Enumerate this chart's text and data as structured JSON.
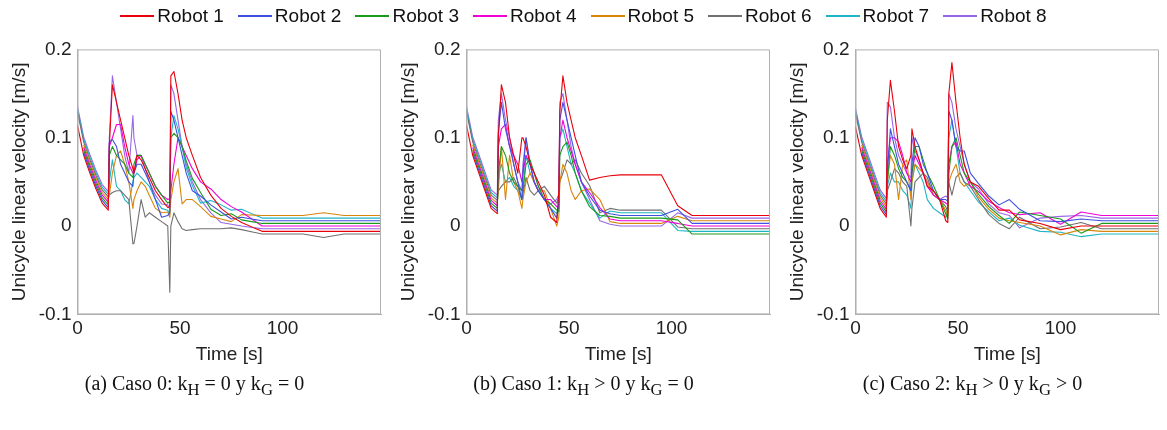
{
  "chart_data": [
    {
      "type": "line",
      "title": "(a) Caso 0: k$_{H}$ = 0 y k$_{G}$ = 0",
      "xlabel": "Time [s]",
      "ylabel": "Unicycle linear velocity [m/s]",
      "xlim": [
        0,
        148
      ],
      "xticks": [
        0,
        50,
        100
      ],
      "ylim": [
        -0.1,
        0.2
      ],
      "yticks": [
        -0.1,
        0,
        0.1,
        0.2
      ],
      "grid": false,
      "legend": "top",
      "x": [
        0,
        3,
        6,
        9,
        12,
        15,
        15.5,
        17,
        19,
        21,
        23,
        25,
        27,
        27.5,
        29,
        31,
        33,
        35,
        38,
        41,
        44,
        45,
        45.5,
        47,
        49,
        51,
        53,
        56,
        60,
        65,
        70,
        75,
        80,
        90,
        100,
        110,
        120,
        130,
        140,
        148
      ],
      "series": [
        {
          "name": "Robot 1",
          "color": "#e8000b",
          "values": [
            0.114,
            0.08,
            0.06,
            0.042,
            0.026,
            0.018,
            0.09,
            0.16,
            0.14,
            0.12,
            0.1,
            0.08,
            0.065,
            0.06,
            0.08,
            0.075,
            0.065,
            0.055,
            0.04,
            0.03,
            0.021,
            0.022,
            0.17,
            0.175,
            0.15,
            0.12,
            0.1,
            0.08,
            0.055,
            0.035,
            0.02,
            0.011,
            0.004,
            -0.006,
            -0.006,
            -0.006,
            -0.006,
            -0.006,
            -0.006,
            -0.006
          ]
        },
        {
          "name": "Robot 2",
          "color": "#3d50e0",
          "values": [
            null,
            0.083,
            0.063,
            0.045,
            0.029,
            0.021,
            0.095,
            0.098,
            0.09,
            0.07,
            0.06,
            0.05,
            0.045,
            0.06,
            0.07,
            0.07,
            0.06,
            0.05,
            0.03,
            0.01,
            0.012,
            0.016,
            0.13,
            0.12,
            0.1,
            0.08,
            0.06,
            0.04,
            0.034,
            0.024,
            0.016,
            0.008,
            0.01,
            0.006,
            0.006,
            0.006,
            0.006,
            0.006,
            0.006,
            0.006
          ]
        },
        {
          "name": "Robot 3",
          "color": "#1a9a1a",
          "values": [
            null,
            0.086,
            0.066,
            0.048,
            0.032,
            0.024,
            0.08,
            0.09,
            0.08,
            0.075,
            0.07,
            0.06,
            0.055,
            0.07,
            0.08,
            0.08,
            0.07,
            0.06,
            0.045,
            0.035,
            0.026,
            0.028,
            0.1,
            0.105,
            0.1,
            0.09,
            0.074,
            0.054,
            0.038,
            0.019,
            0.012,
            0.014,
            0.007,
            0.003,
            0.003,
            0.003,
            0.003,
            0.003,
            0.003,
            0.003
          ]
        },
        {
          "name": "Robot 4",
          "color": "#f000d8",
          "values": [
            null,
            0.089,
            0.069,
            0.051,
            0.035,
            0.027,
            0.09,
            0.1,
            0.115,
            0.115,
            0.09,
            0.07,
            0.06,
            0.06,
            0.075,
            0.08,
            0.07,
            0.06,
            0.045,
            0.035,
            0.03,
            0.031,
            0.04,
            0.07,
            0.1,
            0.09,
            0.08,
            0.065,
            0.05,
            0.042,
            0.03,
            0.022,
            0.016,
            0,
            0,
            0,
            0,
            0,
            0,
            0
          ]
        },
        {
          "name": "Robot 5",
          "color": "#d9860b",
          "values": [
            null,
            0.092,
            0.072,
            0.054,
            0.038,
            0.03,
            0.035,
            0.06,
            0.08,
            0.085,
            0.07,
            0.05,
            0.02,
            0.03,
            0.04,
            0.05,
            0.045,
            0.035,
            0.02,
            0.015,
            0.016,
            0.01,
            0.03,
            0.05,
            0.065,
            0.025,
            0.03,
            0.03,
            0.022,
            0.011,
            0.008,
            0.005,
            0.013,
            0.012,
            0.012,
            0.012,
            0.015,
            0.012,
            0.012,
            0.012
          ]
        },
        {
          "name": "Robot 6",
          "color": "#707070",
          "values": [
            0.129,
            0.095,
            0.075,
            0.057,
            0.041,
            0.033,
            0.035,
            0.038,
            0.04,
            0.04,
            0.035,
            0.03,
            -0.02,
            -0.02,
            0,
            0.03,
            0.01,
            0.015,
            0.01,
            0.005,
            0,
            -0.075,
            0,
            0.015,
            0.005,
            -0.003,
            -0.005,
            -0.004,
            -0.003,
            -0.003,
            -0.003,
            -0.002,
            -0.004,
            -0.009,
            -0.009,
            -0.009,
            -0.013,
            -0.009,
            -0.009,
            -0.009
          ]
        },
        {
          "name": "Robot 7",
          "color": "#1fb5c4",
          "values": [
            0.132,
            0.098,
            0.078,
            0.06,
            0.044,
            0.036,
            0.05,
            0.075,
            0.045,
            0.04,
            0.03,
            0.025,
            0.05,
            0.055,
            0.06,
            0.055,
            0.05,
            0.045,
            0.03,
            0.02,
            0.018,
            0.013,
            0.1,
            0.125,
            0.11,
            0.09,
            0.066,
            0.046,
            0.026,
            0.029,
            0.024,
            0.018,
            0.019,
            0.009,
            0.009,
            0.009,
            0.009,
            0.009,
            0.009,
            0.009
          ]
        },
        {
          "name": "Robot 8",
          "color": "#9966e6",
          "values": [
            0.135,
            0.101,
            0.081,
            0.063,
            0.047,
            0.039,
            0.1,
            0.17,
            0.14,
            0.11,
            0.08,
            0.06,
            0.125,
            0.1,
            0.08,
            0.08,
            0.065,
            0.05,
            0.035,
            0.025,
            0.024,
            0.019,
            0.16,
            0.15,
            0.12,
            0.09,
            0.07,
            0.05,
            0.03,
            0.015,
            0.004,
            0.002,
            0,
            -0.003,
            -0.003,
            -0.003,
            -0.003,
            -0.003,
            -0.003,
            -0.003
          ]
        }
      ]
    },
    {
      "type": "line",
      "title": "(b) Caso 1: k$_{H}$ > 0 y k$_{G}$ = 0",
      "xlabel": "Time [s]",
      "ylabel": "Unicycle linear velocity [m/s]",
      "xlim": [
        0,
        148
      ],
      "xticks": [
        0,
        50,
        100
      ],
      "ylim": [
        -0.1,
        0.2
      ],
      "yticks": [
        -0.1,
        0,
        0.1,
        0.2
      ],
      "grid": false,
      "x": [
        0,
        3,
        6,
        9,
        12,
        15,
        15.5,
        17,
        19,
        21,
        23,
        25,
        27,
        27.5,
        29,
        31,
        33,
        35,
        38,
        41,
        44,
        45,
        45.5,
        47,
        49,
        51,
        53,
        56,
        60,
        65,
        70,
        75,
        80,
        95,
        103,
        110,
        120,
        130,
        140,
        148
      ],
      "series": [
        {
          "color": "#e8000b",
          "values": [
            0.114,
            0.08,
            0.06,
            0.04,
            0.02,
            0.014,
            0.1,
            0.16,
            0.14,
            0.1,
            0.08,
            0.06,
            0.1,
            0.1,
            0.09,
            0.07,
            0.06,
            0.05,
            0.035,
            0.01,
            0.004,
            0.04,
            0.13,
            0.17,
            0.14,
            0.12,
            0.1,
            0.08,
            0.052,
            0.055,
            0.057,
            0.058,
            0.058,
            0.058,
            0.023,
            0.012,
            0.012,
            0.012,
            0.012,
            0.012
          ]
        },
        {
          "color": "#3d50e0",
          "values": [
            null,
            0.083,
            0.063,
            0.043,
            0.023,
            0.017,
            0.106,
            0.14,
            0.11,
            0.09,
            0.07,
            0.05,
            0.03,
            0.06,
            0.1,
            0.07,
            0.05,
            0.04,
            0.03,
            0.02,
            0.009,
            0.028,
            0.12,
            0.14,
            0.12,
            0.1,
            0.08,
            0.05,
            0.034,
            0.018,
            0.014,
            0.012,
            0.012,
            0.012,
            0.019,
            0.003,
            0.003,
            0.003,
            0.003,
            0.003
          ]
        },
        {
          "color": "#1a9a1a",
          "values": [
            null,
            0.086,
            0.066,
            0.046,
            0.026,
            0.02,
            0.06,
            0.09,
            0.08,
            0.06,
            0.05,
            0.045,
            0.04,
            0.04,
            0.07,
            0.075,
            0.06,
            0.045,
            0.03,
            0.025,
            0.018,
            0.016,
            0.08,
            0.09,
            0.095,
            0.08,
            0.06,
            0.04,
            0.022,
            0.012,
            0.011,
            0.009,
            0.009,
            0.009,
            0.007,
            -0.009,
            -0.009,
            -0.009,
            -0.009,
            -0.009
          ]
        },
        {
          "color": "#f000d8",
          "values": [
            null,
            0.089,
            0.069,
            0.049,
            0.029,
            0.023,
            0.09,
            0.11,
            0.115,
            0.09,
            0.08,
            0.07,
            0.05,
            0.06,
            0.08,
            0.07,
            0.05,
            0.04,
            0.03,
            0.03,
            0.022,
            0.02,
            0.1,
            0.12,
            0.1,
            0.085,
            0.07,
            0.05,
            0.038,
            0.021,
            0.008,
            0.006,
            0.006,
            0.006,
            0.003,
            0,
            0,
            0,
            0,
            0
          ]
        },
        {
          "color": "#d9860b",
          "values": [
            null,
            0.092,
            0.072,
            0.052,
            0.032,
            0.026,
            0.04,
            0.09,
            0.03,
            0.08,
            0.05,
            0.04,
            0.02,
            0.03,
            0.05,
            0.06,
            0.05,
            0.04,
            0.04,
            0.02,
            0,
            0.01,
            0.05,
            0.07,
            0.06,
            0.04,
            0.03,
            0.04,
            0.042,
            0.03,
            0.005,
            0.003,
            0.003,
            0.003,
            0.011,
            0.006,
            0.006,
            0.006,
            0.006,
            0.006
          ]
        },
        {
          "color": "#707070",
          "values": [
            0.129,
            0.095,
            0.075,
            0.055,
            0.035,
            0.029,
            0.04,
            0.045,
            0.05,
            0.05,
            0.055,
            0.045,
            0.03,
            0.035,
            0.055,
            0.04,
            0.035,
            0.04,
            0.045,
            0.035,
            0.026,
            0.032,
            0.05,
            0.06,
            0.075,
            0.07,
            0.075,
            0.06,
            0.046,
            0.015,
            0.02,
            0.018,
            0.018,
            0.018,
            -0.001,
            -0.003,
            -0.003,
            -0.003,
            -0.003,
            -0.003
          ]
        },
        {
          "color": "#1fb5c4",
          "values": [
            0.132,
            0.098,
            0.078,
            0.058,
            0.038,
            0.032,
            0.057,
            0.07,
            0.05,
            0.055,
            0.045,
            0.04,
            0.03,
            0.04,
            0.08,
            0.06,
            0.05,
            0.04,
            0.03,
            0.02,
            0.014,
            0.024,
            0.1,
            0.11,
            0.09,
            0.07,
            0.06,
            0.04,
            0.026,
            0.009,
            0.017,
            0.015,
            0.015,
            0.015,
            -0.005,
            -0.006,
            -0.006,
            -0.006,
            -0.006,
            -0.006
          ]
        },
        {
          "color": "#9966e6",
          "values": [
            0.135,
            0.101,
            0.081,
            0.061,
            0.041,
            0.035,
            0.12,
            0.15,
            0.12,
            0.1,
            0.07,
            0.05,
            0.04,
            0.07,
            0.1,
            0.07,
            0.06,
            0.045,
            0.03,
            0.025,
            0.03,
            0.036,
            0.14,
            0.15,
            0.12,
            0.09,
            0.07,
            0.05,
            0.03,
            0.006,
            0.002,
            0,
            0,
            0,
            0.015,
            0.009,
            0.009,
            0.009,
            0.009,
            0.009
          ]
        }
      ]
    },
    {
      "type": "line",
      "title": "(c) Caso 2: k$_{H}$ > 0 y k$_{G}$ > 0",
      "xlabel": "Time [s]",
      "ylabel": "Unicycle linear velocity [m/s]",
      "xlim": [
        0,
        148
      ],
      "xticks": [
        0,
        50,
        100
      ],
      "ylim": [
        -0.1,
        0.2
      ],
      "yticks": [
        -0.1,
        0,
        0.1,
        0.2
      ],
      "grid": false,
      "x": [
        0,
        3,
        6,
        9,
        12,
        15,
        15.5,
        17,
        19,
        21,
        23,
        25,
        27,
        27.5,
        29,
        31,
        33,
        35,
        38,
        41,
        44,
        45,
        45.5,
        47,
        49,
        51,
        53,
        56,
        60,
        65,
        70,
        75,
        80,
        90,
        100,
        110,
        120,
        130,
        140,
        148
      ],
      "series": [
        {
          "color": "#e8000b",
          "values": [
            0.112,
            0.08,
            0.06,
            0.04,
            0.02,
            0.01,
            0.12,
            0.165,
            0.13,
            0.09,
            0.075,
            0.065,
            0.08,
            0.11,
            0.09,
            0.075,
            0.06,
            0.045,
            0.04,
            0.03,
            0.006,
            0.004,
            0.15,
            0.185,
            0.14,
            0.1,
            0.07,
            0.05,
            0.045,
            0.031,
            0.018,
            0.018,
            0.007,
            0.003,
            -0.004,
            0,
            0,
            0,
            0,
            0
          ]
        },
        {
          "color": "#3d50e0",
          "values": [
            null,
            0.083,
            0.063,
            0.043,
            0.023,
            0.013,
            0.06,
            0.11,
            0.09,
            0.07,
            0.06,
            0.05,
            0.04,
            0.07,
            0.1,
            0.09,
            0.07,
            0.06,
            0.04,
            0.03,
            0.03,
            0.028,
            0.13,
            0.12,
            0.09,
            0.085,
            0.085,
            0.06,
            0.048,
            0.034,
            0.024,
            0.03,
            0.019,
            0.006,
            0.005,
            0.008,
            0.006,
            0.006,
            0.006,
            0.006
          ]
        },
        {
          "color": "#1a9a1a",
          "values": [
            null,
            0.086,
            0.066,
            0.046,
            0.026,
            0.016,
            0.05,
            0.09,
            0.08,
            0.065,
            0.055,
            0.05,
            0.04,
            0.06,
            0.09,
            0.09,
            0.075,
            0.06,
            0.046,
            0.03,
            0.014,
            0.008,
            0.06,
            0.09,
            0.1,
            0.08,
            0.06,
            0.05,
            0.036,
            0.022,
            0.012,
            0.003,
            0.016,
            0.012,
            0.008,
            -0.008,
            0.003,
            0.003,
            0.003,
            0.003
          ]
        },
        {
          "color": "#f000d8",
          "values": [
            null,
            0.089,
            0.069,
            0.049,
            0.029,
            0.019,
            0.07,
            0.1,
            0.1,
            0.095,
            0.08,
            0.06,
            0.05,
            0.06,
            0.08,
            0.07,
            0.06,
            0.045,
            0.035,
            0.03,
            0.026,
            0.024,
            0.07,
            0.09,
            0.095,
            0.07,
            0.06,
            0.045,
            0.039,
            0.028,
            0.021,
            0.015,
            0.013,
            0.015,
            0.002,
            0.016,
            0.012,
            0.012,
            0.012,
            0.012
          ]
        },
        {
          "color": "#d9860b",
          "values": [
            null,
            0.092,
            0.072,
            0.052,
            0.032,
            0.022,
            0.05,
            0.08,
            0.07,
            0.03,
            0.07,
            0.075,
            0.03,
            0.05,
            0.07,
            0.065,
            0.06,
            0.05,
            0.035,
            0.03,
            0.018,
            0.012,
            0.05,
            0.06,
            0.07,
            0.05,
            0.045,
            0.05,
            0.033,
            0.019,
            0.009,
            0.006,
            0.004,
            0,
            -0.01,
            -0.004,
            -0.006,
            -0.006,
            -0.006,
            -0.006
          ]
        },
        {
          "color": "#707070",
          "values": [
            0.127,
            0.095,
            0.075,
            0.055,
            0.035,
            0.025,
            0.04,
            0.05,
            0.065,
            0.06,
            0.05,
            0.045,
            0,
            0.02,
            0.05,
            0.055,
            0.06,
            0.055,
            0.035,
            0.03,
            0.022,
            0.016,
            0.05,
            0.035,
            0.055,
            0.06,
            0.05,
            0.045,
            0.03,
            0.013,
            0.003,
            -0.003,
            0.01,
            -0.003,
            -0.001,
            0.004,
            -0.003,
            -0.003,
            -0.003,
            -0.003
          ]
        },
        {
          "color": "#1fb5c4",
          "values": [
            0.13,
            0.098,
            0.078,
            0.058,
            0.038,
            0.028,
            0.045,
            0.06,
            0.05,
            0.05,
            0.04,
            0.035,
            0.02,
            0.05,
            0.07,
            0.06,
            0.05,
            0.03,
            0.02,
            0.015,
            0.01,
            0.02,
            0.1,
            0.12,
            0.09,
            0.06,
            0.05,
            0.04,
            0.027,
            0.016,
            0.006,
            0.009,
            0.001,
            -0.006,
            -0.007,
            -0.012,
            -0.009,
            -0.009,
            -0.009,
            -0.009
          ]
        },
        {
          "color": "#9966e6",
          "values": [
            0.133,
            0.101,
            0.081,
            0.061,
            0.041,
            0.031,
            0.14,
            0.135,
            0.1,
            0.08,
            0.07,
            0.06,
            0.055,
            0.1,
            0.085,
            0.075,
            0.06,
            0.05,
            0.04,
            0.03,
            0.034,
            0.032,
            0.15,
            0.14,
            0.11,
            0.09,
            0.07,
            0.05,
            0.042,
            0.025,
            0.015,
            0.012,
            -0.002,
            0.009,
            0.011,
            0.012,
            0.009,
            0.009,
            0.009,
            0.009
          ]
        }
      ]
    }
  ]
}
